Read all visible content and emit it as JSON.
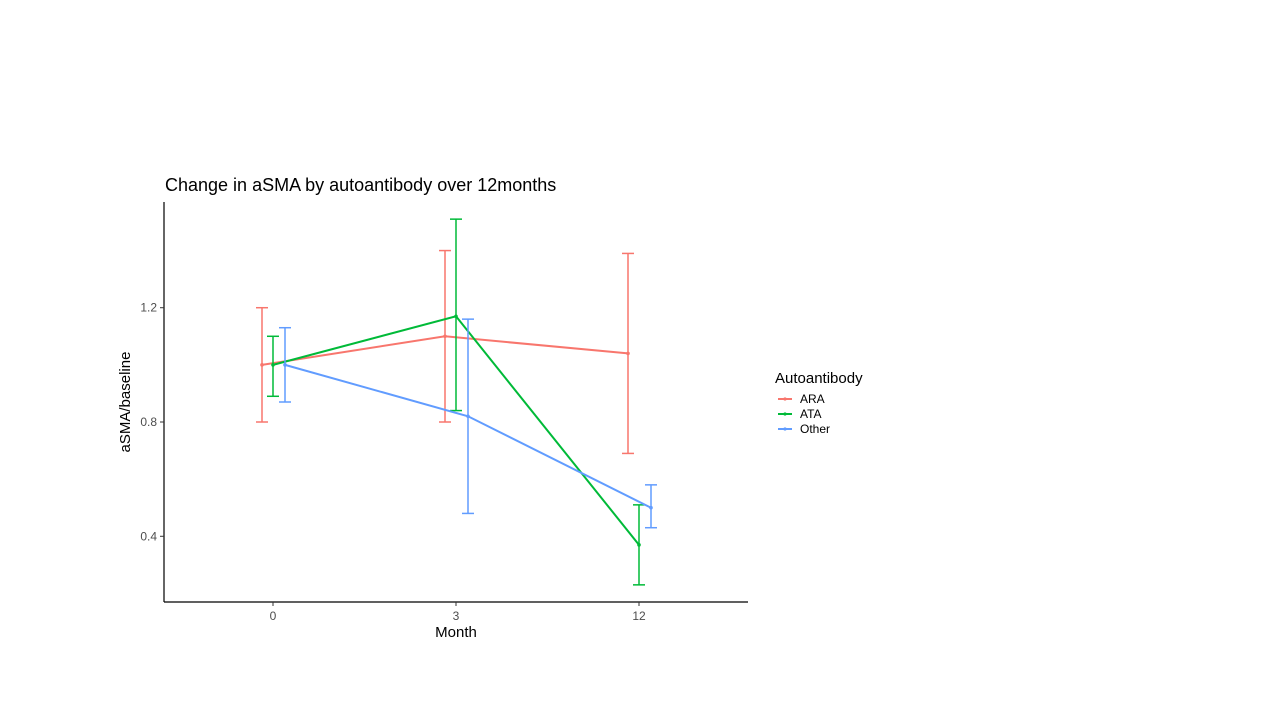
{
  "chart_data": {
    "type": "line",
    "title": "Change in aSMA by autoantibody over 12months",
    "xlabel": "Month",
    "ylabel": "aSMA/baseline",
    "categories": [
      "0",
      "3",
      "12"
    ],
    "ylim": [
      0.17,
      1.57
    ],
    "y_ticks": [
      0.4,
      0.8,
      1.2
    ],
    "y_tick_labels": [
      "0.4",
      "0.8",
      "1.2"
    ],
    "grid": false,
    "error_bars": true,
    "legend": {
      "title": "Autoantibody",
      "position": "right"
    },
    "series": [
      {
        "name": "ARA",
        "color": "#f8766d",
        "values": [
          1.0,
          1.1,
          1.04
        ],
        "lower": [
          0.8,
          0.8,
          0.69
        ],
        "upper": [
          1.2,
          1.4,
          1.39
        ]
      },
      {
        "name": "ATA",
        "color": "#00ba38",
        "values": [
          1.0,
          1.17,
          0.37
        ],
        "lower": [
          0.89,
          0.84,
          0.23
        ],
        "upper": [
          1.1,
          1.51,
          0.51
        ]
      },
      {
        "name": "Other",
        "color": "#619cff",
        "values": [
          1.0,
          0.82,
          0.5
        ],
        "lower": [
          0.87,
          0.48,
          0.43
        ],
        "upper": [
          1.13,
          1.16,
          0.58
        ]
      }
    ]
  }
}
